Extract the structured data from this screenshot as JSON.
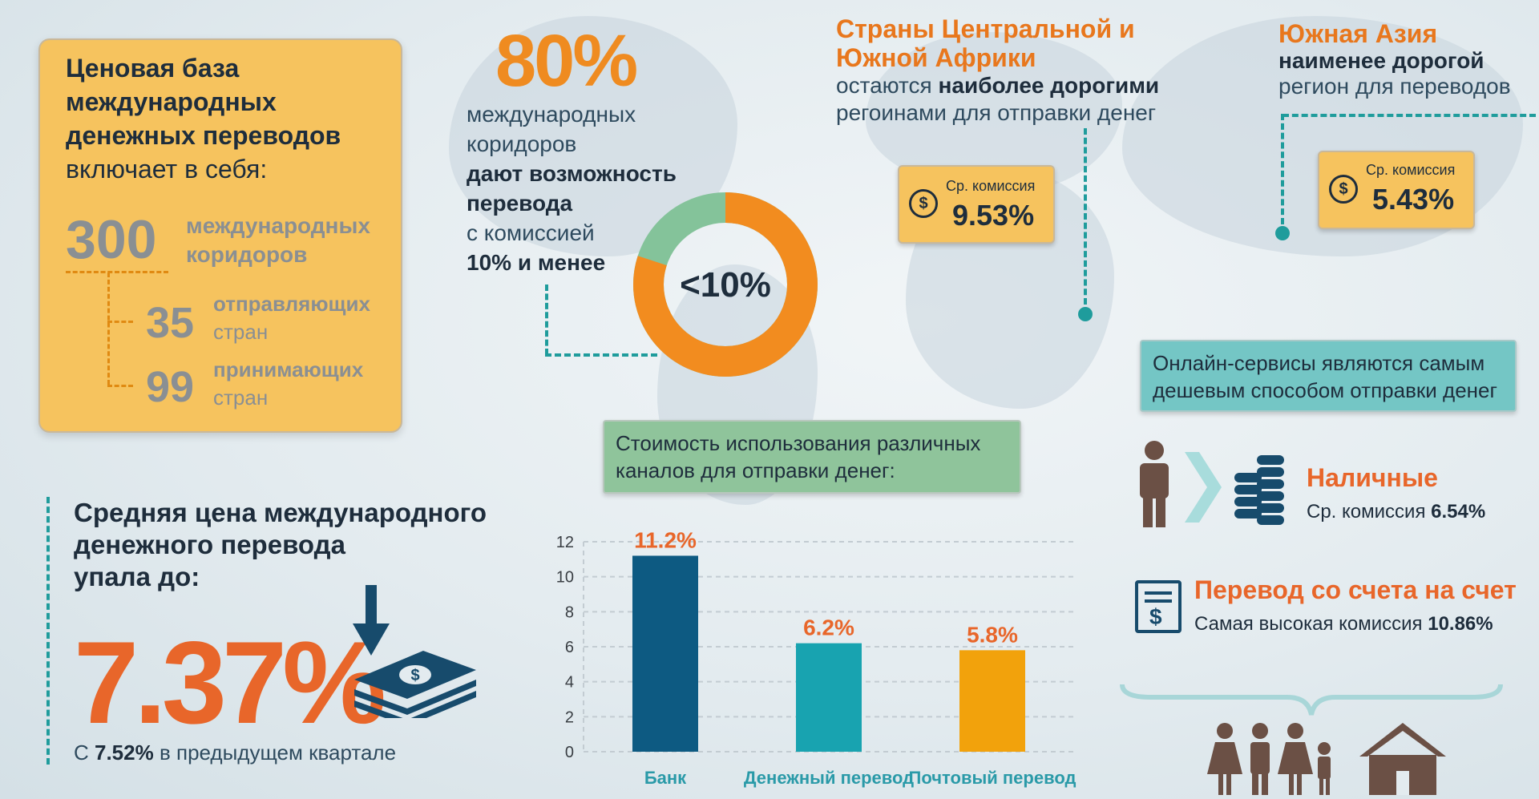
{
  "price_base": {
    "title_line1": "Ценовая база",
    "title_line2": "международных",
    "title_line3": "денежных переводов",
    "title_line4": "включает в себя:",
    "corridors_num": "300",
    "corridors_l1": "международных",
    "corridors_l2": "коридоров",
    "senders_num": "35",
    "senders_l1": "отправляющих",
    "senders_l2": "стран",
    "receivers_num": "99",
    "receivers_l1": "принимающих",
    "receivers_l2": "стран"
  },
  "corridors80": {
    "pct": "80%",
    "l1": "международных",
    "l2": "коридоров",
    "l3": "дают возможность",
    "l4": "перевода",
    "l5": "с комиссией",
    "l6": "10% и менее",
    "donut_label": "<10%",
    "donut_share": 0.8,
    "colors": {
      "major": "#f28c1f",
      "minor": "#84c39a"
    }
  },
  "africa": {
    "head_l1": "Страны Центральной и",
    "head_l2": "Южной Африки",
    "l1_pre": "остаются ",
    "l1_bold": "наиболее дорогими",
    "l2": "регоинами для отправки денег",
    "badge_label": "Ср. комиссия",
    "badge_value": "9.53%",
    "dollar": "$"
  },
  "south_asia": {
    "head": "Южная Азия",
    "l1": "наименее дорогой",
    "l2": "регион для переводов",
    "badge_label": "Ср. комиссия",
    "badge_value": "5.43%",
    "dollar": "$"
  },
  "online": {
    "l1": "Онлайн-сервисы являются самым",
    "l2": "дешевым способом отправки денег"
  },
  "cash": {
    "title": "Наличные",
    "sub_pre": "Ср. комиссия ",
    "sub_val": "6.54%"
  },
  "account": {
    "title": "Перевод со счета на счет",
    "sub_pre": "Самая высокая комиссия ",
    "sub_val": "10.86%",
    "dollar": "$"
  },
  "average": {
    "l1": "Средняя цена международного",
    "l2": "денежного перевода",
    "l3": "упала до:",
    "value": "7.37%",
    "prev_pre": "С ",
    "prev_val": "7.52%",
    "prev_post": " в предыдущем квартале",
    "bill_glyph": "$"
  },
  "channels": {
    "l1": "Стоимость использования различных",
    "l2": "каналов для отправки денег:"
  },
  "chart_data": {
    "type": "bar",
    "categories": [
      "Банк",
      "Денежный перевод",
      "Почтовый перевод"
    ],
    "values": [
      11.2,
      6.2,
      5.8
    ],
    "value_labels": [
      "11.2%",
      "6.2%",
      "5.8%"
    ],
    "colors": [
      "#0d5a82",
      "#18a3b0",
      "#f2a20c"
    ],
    "yticks": [
      0,
      2,
      4,
      6,
      8,
      10,
      12
    ],
    "ylim": [
      0,
      12
    ],
    "grid": true
  }
}
